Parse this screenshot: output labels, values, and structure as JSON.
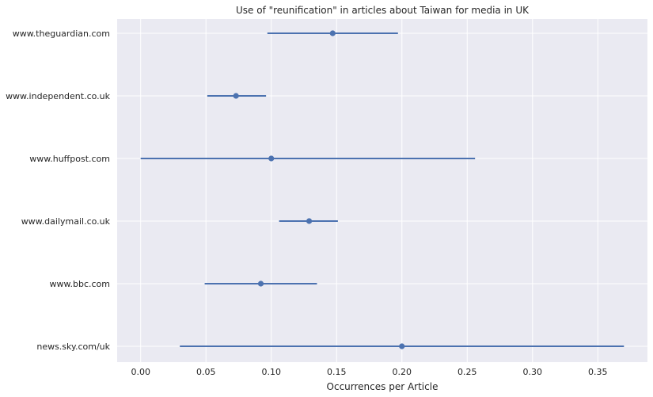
{
  "chart_data": {
    "type": "errorbar",
    "title": "Use of \"reunification\" in articles about Taiwan for media in UK",
    "xlabel": "Occurrences per Article",
    "ylabel": "",
    "xlim": [
      -0.018,
      0.388
    ],
    "xticks": [
      "0.00",
      "0.05",
      "0.10",
      "0.15",
      "0.20",
      "0.25",
      "0.30",
      "0.35"
    ],
    "grid": true,
    "colors": {
      "background": "#eaeaf2",
      "grid": "#ffffff",
      "series": "#4c72b0"
    },
    "categories": [
      "www.theguardian.com",
      "www.independent.co.uk",
      "www.huffpost.com",
      "www.dailymail.co.uk",
      "www.bbc.com",
      "news.sky.com/uk"
    ],
    "points": [
      {
        "label": "www.theguardian.com",
        "value": 0.147,
        "low": 0.097,
        "high": 0.197
      },
      {
        "label": "www.independent.co.uk",
        "value": 0.073,
        "low": 0.051,
        "high": 0.096
      },
      {
        "label": "www.huffpost.com",
        "value": 0.1,
        "low": 0.0,
        "high": 0.256
      },
      {
        "label": "www.dailymail.co.uk",
        "value": 0.129,
        "low": 0.106,
        "high": 0.151
      },
      {
        "label": "www.bbc.com",
        "value": 0.092,
        "low": 0.049,
        "high": 0.135
      },
      {
        "label": "news.sky.com/uk",
        "value": 0.2,
        "low": 0.03,
        "high": 0.37
      }
    ]
  }
}
